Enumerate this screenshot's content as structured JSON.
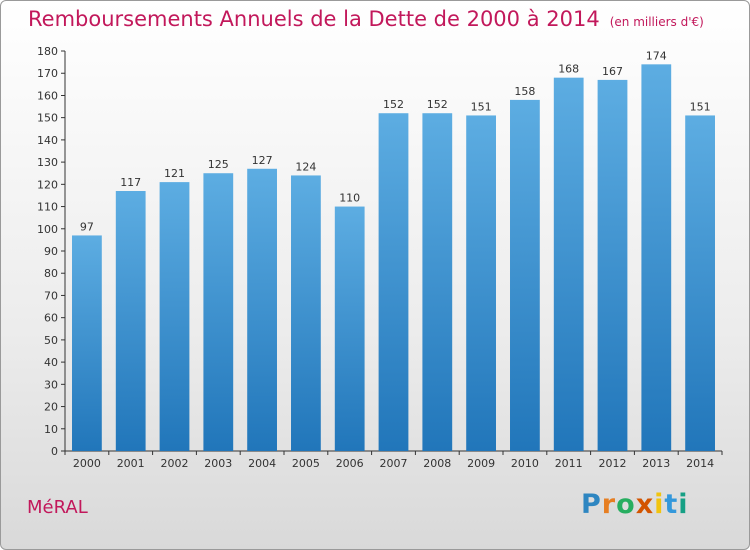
{
  "header": {
    "title": "Remboursements Annuels de la Dette de 2000 à 2014",
    "subtitle": "(en milliers d'€)"
  },
  "footer": {
    "commune": "MéRAL",
    "logo_letters": [
      "P",
      "r",
      "o",
      "x",
      "i",
      "t",
      "i"
    ]
  },
  "colors": {
    "bar_light": "#5dade2",
    "bar_dark": "#2176ba",
    "title": "#c2185b"
  },
  "chart_data": {
    "type": "bar",
    "title": "Remboursements Annuels de la Dette de 2000 à 2014",
    "xlabel": "",
    "ylabel": "",
    "ylim": [
      0,
      180
    ],
    "ytick_step": 10,
    "grid": false,
    "categories": [
      "2000",
      "2001",
      "2002",
      "2003",
      "2004",
      "2005",
      "2006",
      "2007",
      "2008",
      "2009",
      "2010",
      "2011",
      "2012",
      "2013",
      "2014"
    ],
    "values": [
      97,
      117,
      121,
      125,
      127,
      124,
      110,
      152,
      152,
      151,
      158,
      168,
      167,
      174,
      151
    ]
  }
}
